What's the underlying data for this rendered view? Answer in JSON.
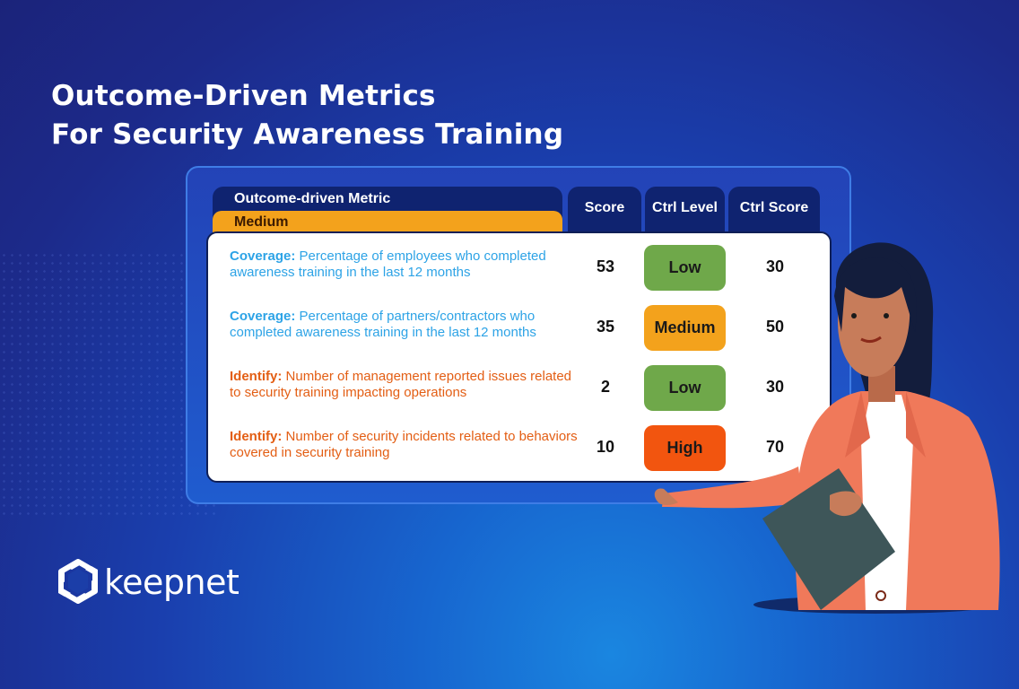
{
  "title": {
    "line1": "Outcome-Driven Metrics",
    "line2": "For Security Awareness Training"
  },
  "table": {
    "header": {
      "metric": "Outcome-driven Metric",
      "badge": "Medium",
      "score": "Score",
      "ctrl_level": "Ctrl Level",
      "ctrl_score": "Ctrl Score"
    },
    "rows": [
      {
        "key": "Coverage:",
        "text": "Percentage of employees who completed awareness training in the last 12 months",
        "score": "53",
        "level": "Low",
        "ctrl_score": "30"
      },
      {
        "key": "Coverage:",
        "text": "Percentage of partners/contractors who completed awareness training in the last 12 months",
        "score": "35",
        "level": "Medium",
        "ctrl_score": "50"
      },
      {
        "key": "Identify:",
        "text": "Number of management reported issues related to security training impacting operations",
        "score": "2",
        "level": "Low",
        "ctrl_score": "30"
      },
      {
        "key": "Identify:",
        "text": "Number of security incidents related to behaviors covered in security training",
        "score": "10",
        "level": "High",
        "ctrl_score": "70"
      }
    ]
  },
  "colors": {
    "low": "#6fa84a",
    "medium": "#f3a21c",
    "high": "#f2550f",
    "coverage": "#2da3e6",
    "identify": "#e35e14"
  },
  "logo": {
    "text": "keepnet",
    "icon": "keepnet-logo-icon"
  },
  "illustration": {
    "icon": "presenter-woman-illustration"
  }
}
